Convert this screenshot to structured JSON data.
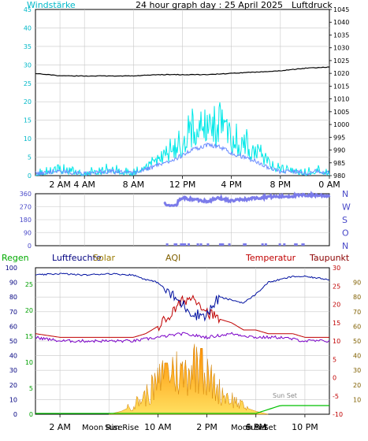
{
  "top": {
    "left_label": "Windstärke",
    "title": "24 hour graph day : 25 April 2025",
    "right_label": "Luftdruck",
    "left_ticks": [
      "45",
      "40",
      "35",
      "30",
      "25",
      "20",
      "15",
      "10",
      "5",
      "0"
    ],
    "right_ticks": [
      "1045",
      "1040",
      "1035",
      "1030",
      "1025",
      "1020",
      "1015",
      "1010",
      "1005",
      "1000",
      "995",
      "990",
      "985",
      "980"
    ],
    "x_ticks": [
      "2 AM",
      "4 AM",
      "8 AM",
      "12 PM",
      "4 PM",
      "8 PM",
      "0 AM"
    ],
    "colors": {
      "wind": "#00d8d8",
      "gust": "#00e8e8",
      "avg": "#6a8cff",
      "pressure": "#000000"
    }
  },
  "wind_dir": {
    "left_ticks": [
      "360",
      "270",
      "180",
      "90",
      "0"
    ],
    "right_labels": [
      "N",
      "W",
      "S",
      "O",
      "N"
    ],
    "color": "#7b7bea"
  },
  "bottom": {
    "labels": [
      {
        "text": "Regen",
        "color": "#00aa00"
      },
      {
        "text": "Luftfeuchte",
        "color": "#000080"
      },
      {
        "text": "Solar",
        "color": "#9a7a00"
      },
      {
        "text": "AQI",
        "color": "#806000"
      },
      {
        "text": "Temperatur",
        "color": "#c00000"
      },
      {
        "text": "Taupunkt",
        "color": "#8b0000"
      }
    ],
    "left_ticks": [
      "100",
      "90",
      "80",
      "70",
      "60",
      "50",
      "40",
      "30",
      "20",
      "10",
      "0"
    ],
    "rain_ticks": [
      "25",
      "20",
      "15",
      "10",
      "5",
      "0"
    ],
    "temp_ticks": [
      "30",
      "25",
      "20",
      "15",
      "10",
      "5",
      "0",
      "-5",
      "-10"
    ],
    "solar_ticks": [
      "90",
      "80",
      "70",
      "60",
      "50",
      "40",
      "30",
      "20",
      "10"
    ],
    "x_ticks": [
      "2 AM",
      "10 AM",
      "2 PM",
      "6 PM",
      "10 PM"
    ],
    "events": [
      "Moon Rise",
      "Sun Rise",
      "Moon Set",
      "Sun Set",
      "Sun Set"
    ]
  },
  "chart_data": [
    {
      "type": "line",
      "title": "24 hour graph day : 25 April 2025",
      "series": [
        {
          "name": "Windstärke",
          "x": [
            0,
            2,
            4,
            6,
            8,
            9,
            10,
            11,
            12,
            13,
            14,
            15,
            16,
            17,
            18,
            19,
            20,
            21,
            22,
            23,
            24
          ],
          "values": [
            0,
            1,
            0,
            1,
            0,
            2,
            4,
            6,
            9,
            12,
            14,
            13,
            10,
            8,
            6,
            3,
            1,
            1,
            0,
            1,
            0
          ]
        },
        {
          "name": "Luftdruck",
          "x": [
            0,
            2,
            4,
            6,
            8,
            10,
            12,
            14,
            16,
            18,
            20,
            22,
            24
          ],
          "values": [
            1020,
            1019,
            1019,
            1019,
            1019,
            1019.5,
            1019.5,
            1019.5,
            1020,
            1020.5,
            1021,
            1022,
            1022.5
          ]
        }
      ],
      "ylim": [
        0,
        45
      ],
      "y2lim": [
        980,
        1045
      ]
    },
    {
      "type": "scatter",
      "series": [
        {
          "name": "Windrichtung",
          "x": [
            11.5,
            12,
            13,
            14,
            15,
            16,
            17,
            18,
            19,
            20,
            21,
            22,
            23,
            24
          ],
          "values": [
            300,
            330,
            320,
            310,
            330,
            310,
            320,
            330,
            340,
            340,
            345,
            350,
            350,
            345
          ]
        }
      ],
      "ylim": [
        0,
        360
      ]
    },
    {
      "type": "line",
      "series": [
        {
          "name": "Luftfeuchte",
          "x": [
            0,
            2,
            4,
            6,
            8,
            9,
            10,
            11,
            12,
            13,
            14,
            15,
            16,
            17,
            18,
            19,
            20,
            21,
            22,
            23,
            24
          ],
          "values": [
            95,
            96,
            95,
            96,
            95,
            92,
            90,
            82,
            75,
            68,
            68,
            80,
            78,
            76,
            82,
            90,
            92,
            94,
            94,
            93,
            92
          ]
        },
        {
          "name": "Temperatur",
          "x": [
            0,
            2,
            4,
            6,
            8,
            9,
            10,
            11,
            12,
            13,
            14,
            15,
            16,
            17,
            18,
            19,
            20,
            21,
            22,
            23,
            24
          ],
          "values": [
            12,
            11,
            11,
            11,
            11,
            12,
            14,
            17,
            21,
            22,
            18,
            16,
            15,
            13,
            13,
            12,
            12,
            12,
            11,
            11,
            11
          ]
        },
        {
          "name": "Taupunkt",
          "x": [
            0,
            2,
            4,
            6,
            8,
            10,
            12,
            14,
            16,
            18,
            20,
            22,
            24
          ],
          "values": [
            11,
            10,
            10,
            10,
            10,
            11,
            12,
            11,
            12,
            11,
            11,
            10,
            10
          ]
        },
        {
          "name": "Solar",
          "x": [
            0,
            6,
            7,
            8,
            9,
            10,
            11,
            12,
            13,
            14,
            15,
            16,
            17,
            18,
            19,
            20,
            24
          ],
          "values": [
            0,
            0,
            2,
            6,
            12,
            20,
            30,
            25,
            35,
            24,
            15,
            10,
            5,
            2,
            0,
            0,
            0
          ]
        },
        {
          "name": "Regen",
          "x": [
            0,
            18,
            19,
            20,
            24
          ],
          "values": [
            0,
            0,
            1,
            2,
            2
          ]
        }
      ],
      "ylim": [
        0,
        100
      ]
    }
  ]
}
